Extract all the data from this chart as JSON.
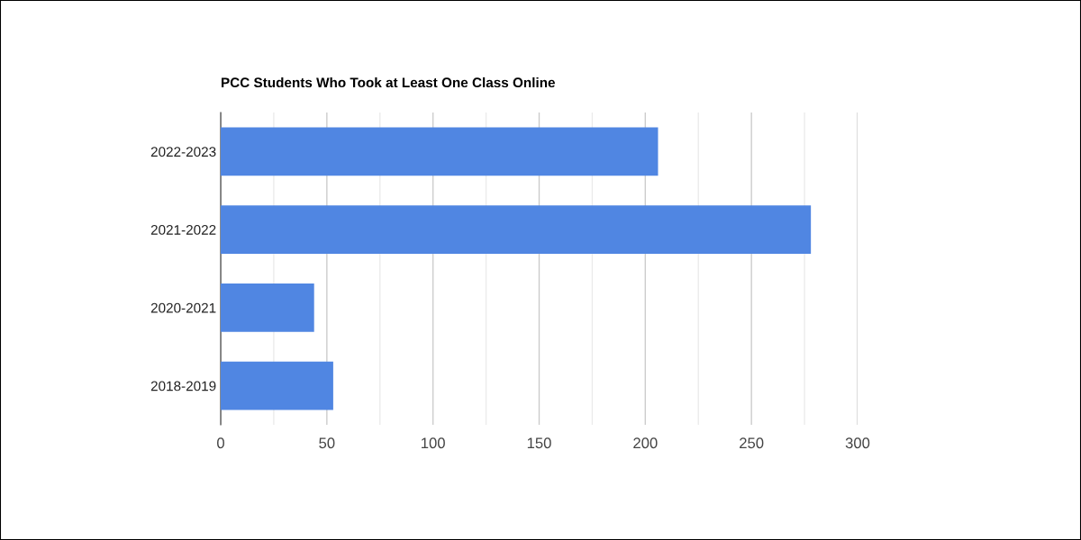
{
  "chart_data": {
    "type": "bar",
    "orientation": "horizontal",
    "title": "PCC Students Who Took at Least One Class Online",
    "categories": [
      "2022-2023",
      "2021-2022",
      "2020-2021",
      "2018-2019"
    ],
    "values": [
      206,
      278,
      44,
      53
    ],
    "color": "#5086e2",
    "xlim": [
      0,
      300
    ],
    "xticks": [
      0,
      {
        "value": 25,
        "label": null
      },
      50,
      {
        "value": 75,
        "label": null
      },
      100,
      {
        "value": 125,
        "label": null
      },
      150,
      {
        "value": 175,
        "label": null
      },
      200,
      {
        "value": 225,
        "label": null
      },
      250,
      {
        "value": 275,
        "label": null
      },
      300
    ],
    "grid": "x",
    "legend": false
  }
}
